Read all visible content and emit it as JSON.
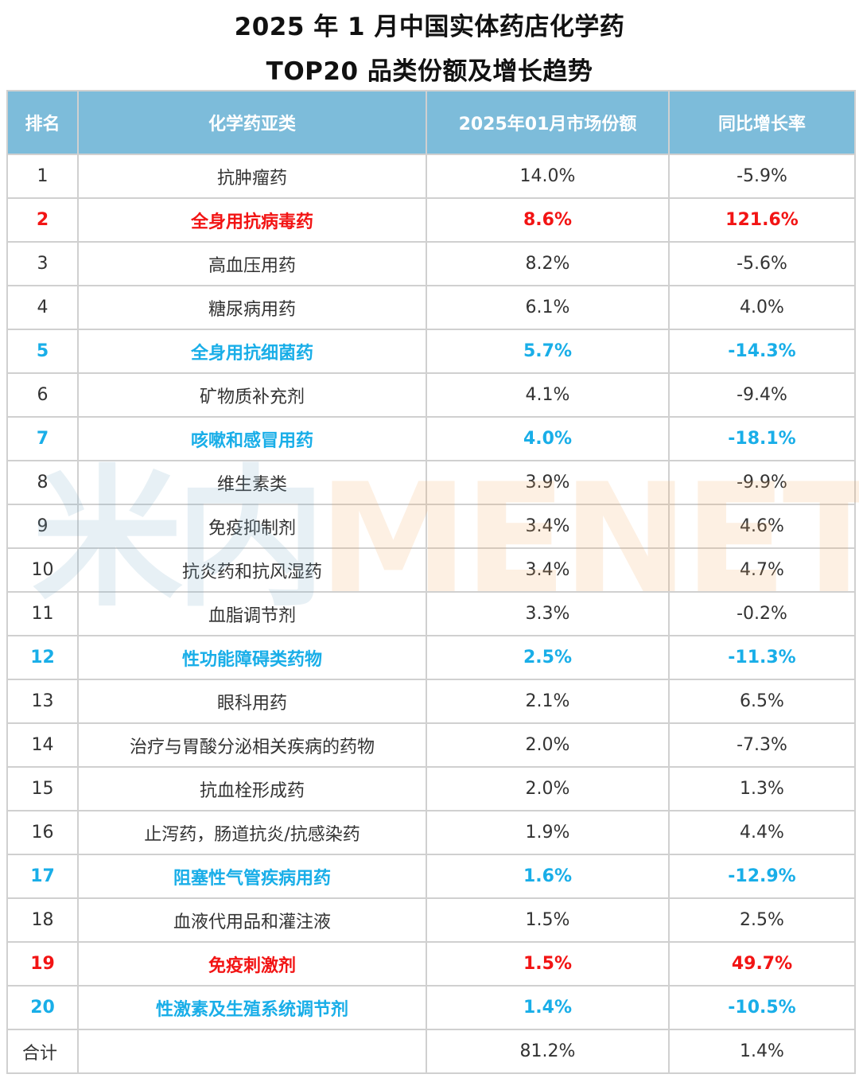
{
  "title": {
    "line1": "2025 年 1 月中国实体药店化学药",
    "line2": "TOP20 品类份额及增长趋势"
  },
  "table": {
    "headers": [
      "排名",
      "化学药亚类",
      "2025年01月市场份额",
      "同比增长率"
    ],
    "header_bg": "#7dbcda",
    "highlight_colors": {
      "red": "#f21414",
      "blue": "#19aee8"
    },
    "rows": [
      {
        "rank": "1",
        "category": "抗肿瘤药",
        "share": "14.0%",
        "growth": "-5.9%",
        "highlight": "none"
      },
      {
        "rank": "2",
        "category": "全身用抗病毒药",
        "share": "8.6%",
        "growth": "121.6%",
        "highlight": "red"
      },
      {
        "rank": "3",
        "category": "高血压用药",
        "share": "8.2%",
        "growth": "-5.6%",
        "highlight": "none"
      },
      {
        "rank": "4",
        "category": "糖尿病用药",
        "share": "6.1%",
        "growth": "4.0%",
        "highlight": "none"
      },
      {
        "rank": "5",
        "category": "全身用抗细菌药",
        "share": "5.7%",
        "growth": "-14.3%",
        "highlight": "blue"
      },
      {
        "rank": "6",
        "category": "矿物质补充剂",
        "share": "4.1%",
        "growth": "-9.4%",
        "highlight": "none"
      },
      {
        "rank": "7",
        "category": "咳嗽和感冒用药",
        "share": "4.0%",
        "growth": "-18.1%",
        "highlight": "blue"
      },
      {
        "rank": "8",
        "category": "维生素类",
        "share": "3.9%",
        "growth": "-9.9%",
        "highlight": "none"
      },
      {
        "rank": "9",
        "category": "免疫抑制剂",
        "share": "3.4%",
        "growth": "4.6%",
        "highlight": "none"
      },
      {
        "rank": "10",
        "category": "抗炎药和抗风湿药",
        "share": "3.4%",
        "growth": "4.7%",
        "highlight": "none"
      },
      {
        "rank": "11",
        "category": "血脂调节剂",
        "share": "3.3%",
        "growth": "-0.2%",
        "highlight": "none"
      },
      {
        "rank": "12",
        "category": "性功能障碍类药物",
        "share": "2.5%",
        "growth": "-11.3%",
        "highlight": "blue"
      },
      {
        "rank": "13",
        "category": "眼科用药",
        "share": "2.1%",
        "growth": "6.5%",
        "highlight": "none"
      },
      {
        "rank": "14",
        "category": "治疗与胃酸分泌相关疾病的药物",
        "share": "2.0%",
        "growth": "-7.3%",
        "highlight": "none"
      },
      {
        "rank": "15",
        "category": "抗血栓形成药",
        "share": "2.0%",
        "growth": "1.3%",
        "highlight": "none"
      },
      {
        "rank": "16",
        "category": "止泻药，肠道抗炎/抗感染药",
        "share": "1.9%",
        "growth": "4.4%",
        "highlight": "none"
      },
      {
        "rank": "17",
        "category": "阻塞性气管疾病用药",
        "share": "1.6%",
        "growth": "-12.9%",
        "highlight": "blue"
      },
      {
        "rank": "18",
        "category": "血液代用品和灌注液",
        "share": "1.5%",
        "growth": "2.5%",
        "highlight": "none"
      },
      {
        "rank": "19",
        "category": "免疫刺激剂",
        "share": "1.5%",
        "growth": "49.7%",
        "highlight": "red"
      },
      {
        "rank": "20",
        "category": "性激素及生殖系统调节剂",
        "share": "1.4%",
        "growth": "-10.5%",
        "highlight": "blue"
      }
    ],
    "total": {
      "rank": "合计",
      "category": "",
      "share": "81.2%",
      "growth": "1.4%"
    }
  },
  "watermark": {
    "cn": "米内",
    "en": "MENET"
  },
  "chart_data": {
    "type": "table",
    "title": "2025 年 1 月中国实体药店化学药 TOP20 品类份额及增长趋势",
    "columns": [
      "排名",
      "化学药亚类",
      "2025年01月市场份额",
      "同比增长率"
    ],
    "categories": [
      "抗肿瘤药",
      "全身用抗病毒药",
      "高血压用药",
      "糖尿病用药",
      "全身用抗细菌药",
      "矿物质补充剂",
      "咳嗽和感冒用药",
      "维生素类",
      "免疫抑制剂",
      "抗炎药和抗风湿药",
      "血脂调节剂",
      "性功能障碍类药物",
      "眼科用药",
      "治疗与胃酸分泌相关疾病的药物",
      "抗血栓形成药",
      "止泻药，肠道抗炎/抗感染药",
      "阻塞性气管疾病用药",
      "血液代用品和灌注液",
      "免疫刺激剂",
      "性激素及生殖系统调节剂"
    ],
    "series": [
      {
        "name": "2025年01月市场份额 (%)",
        "values": [
          14.0,
          8.6,
          8.2,
          6.1,
          5.7,
          4.1,
          4.0,
          3.9,
          3.4,
          3.4,
          3.3,
          2.5,
          2.1,
          2.0,
          2.0,
          1.9,
          1.6,
          1.5,
          1.5,
          1.4
        ]
      },
      {
        "name": "同比增长率 (%)",
        "values": [
          -5.9,
          121.6,
          -5.6,
          4.0,
          -14.3,
          -9.4,
          -18.1,
          -9.9,
          4.6,
          4.7,
          -0.2,
          -11.3,
          6.5,
          -7.3,
          1.3,
          4.4,
          -12.9,
          2.5,
          49.7,
          -10.5
        ]
      }
    ],
    "total": {
      "share": 81.2,
      "growth": 1.4
    },
    "highlights": {
      "red_growth_strong": [
        2,
        19
      ],
      "blue_decline": [
        5,
        7,
        12,
        17,
        20
      ]
    }
  }
}
